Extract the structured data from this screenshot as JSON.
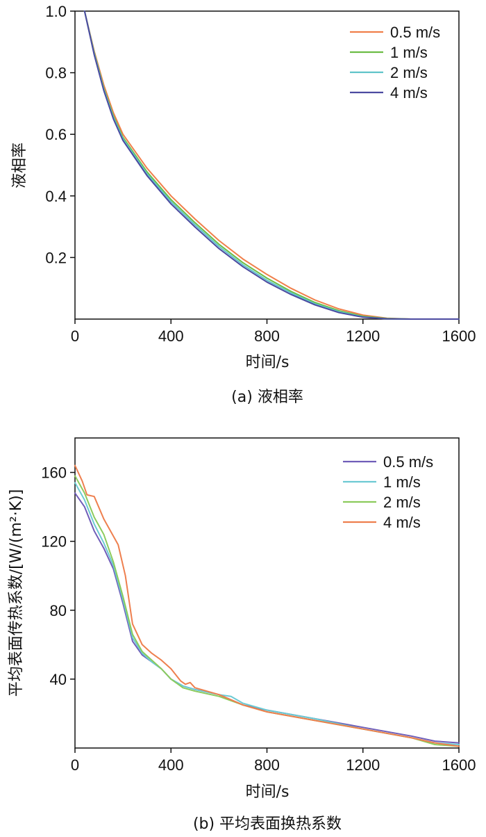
{
  "chart_data": [
    {
      "type": "line",
      "caption": "(a) 液相率",
      "xlabel": "时间/s",
      "ylabel": "液相率",
      "xlim": [
        0,
        1600
      ],
      "ylim": [
        0,
        1.0
      ],
      "xticks": [
        "0",
        "400",
        "800",
        "1200",
        "1600"
      ],
      "yticks": [
        "0.2",
        "0.4",
        "0.6",
        "0.8",
        "1.0"
      ],
      "legend_position": "top-right",
      "series": [
        {
          "name": "0.5 m/s",
          "color": "#f07f4a",
          "points": [
            [
              40,
              1.0
            ],
            [
              80,
              0.87
            ],
            [
              120,
              0.76
            ],
            [
              160,
              0.67
            ],
            [
              200,
              0.6
            ],
            [
              300,
              0.49
            ],
            [
              400,
              0.4
            ],
            [
              500,
              0.325
            ],
            [
              600,
              0.255
            ],
            [
              700,
              0.195
            ],
            [
              800,
              0.145
            ],
            [
              900,
              0.1
            ],
            [
              1000,
              0.062
            ],
            [
              1100,
              0.033
            ],
            [
              1200,
              0.013
            ],
            [
              1300,
              0.003
            ],
            [
              1400,
              0.0
            ],
            [
              1600,
              0.0
            ]
          ]
        },
        {
          "name": "1 m/s",
          "color": "#6cbd45",
          "points": [
            [
              40,
              1.0
            ],
            [
              80,
              0.865
            ],
            [
              120,
              0.75
            ],
            [
              160,
              0.66
            ],
            [
              200,
              0.59
            ],
            [
              300,
              0.478
            ],
            [
              400,
              0.388
            ],
            [
              500,
              0.313
            ],
            [
              600,
              0.243
            ],
            [
              700,
              0.183
            ],
            [
              800,
              0.133
            ],
            [
              900,
              0.09
            ],
            [
              1000,
              0.054
            ],
            [
              1100,
              0.027
            ],
            [
              1200,
              0.009
            ],
            [
              1300,
              0.002
            ],
            [
              1400,
              0.0
            ],
            [
              1600,
              0.0
            ]
          ]
        },
        {
          "name": "2 m/s",
          "color": "#5fc4c9",
          "points": [
            [
              40,
              1.0
            ],
            [
              80,
              0.862
            ],
            [
              120,
              0.746
            ],
            [
              160,
              0.655
            ],
            [
              200,
              0.585
            ],
            [
              300,
              0.472
            ],
            [
              400,
              0.381
            ],
            [
              500,
              0.306
            ],
            [
              600,
              0.236
            ],
            [
              700,
              0.176
            ],
            [
              800,
              0.126
            ],
            [
              900,
              0.085
            ],
            [
              1000,
              0.05
            ],
            [
              1100,
              0.024
            ],
            [
              1200,
              0.007
            ],
            [
              1300,
              0.001
            ],
            [
              1400,
              0.0
            ],
            [
              1600,
              0.0
            ]
          ]
        },
        {
          "name": "4 m/s",
          "color": "#4b4aa0",
          "points": [
            [
              40,
              1.0
            ],
            [
              80,
              0.858
            ],
            [
              120,
              0.742
            ],
            [
              160,
              0.65
            ],
            [
              200,
              0.58
            ],
            [
              300,
              0.466
            ],
            [
              400,
              0.374
            ],
            [
              500,
              0.299
            ],
            [
              600,
              0.229
            ],
            [
              700,
              0.17
            ],
            [
              800,
              0.12
            ],
            [
              900,
              0.08
            ],
            [
              1000,
              0.046
            ],
            [
              1100,
              0.021
            ],
            [
              1200,
              0.006
            ],
            [
              1300,
              0.001
            ],
            [
              1400,
              0.0
            ],
            [
              1600,
              0.0
            ]
          ]
        }
      ]
    },
    {
      "type": "line",
      "caption": "(b) 平均表面换热系数",
      "xlabel": "时间/s",
      "ylabel": "平均表面传热系数/[W/(m²·K)]",
      "xlim": [
        0,
        1600
      ],
      "ylim": [
        0,
        180
      ],
      "xticks": [
        "0",
        "400",
        "800",
        "1200",
        "1600"
      ],
      "yticks": [
        "40",
        "80",
        "120",
        "160"
      ],
      "legend_position": "top-right",
      "series": [
        {
          "name": "0.5 m/s",
          "color": "#6f5db8",
          "points": [
            [
              0,
              148
            ],
            [
              40,
              140
            ],
            [
              80,
              126
            ],
            [
              120,
              116
            ],
            [
              160,
              104
            ],
            [
              200,
              84
            ],
            [
              240,
              62
            ],
            [
              280,
              54
            ],
            [
              320,
              50
            ],
            [
              360,
              46
            ],
            [
              400,
              40
            ],
            [
              450,
              36
            ],
            [
              500,
              34
            ],
            [
              600,
              31
            ],
            [
              700,
              25
            ],
            [
              800,
              22
            ],
            [
              1000,
              17
            ],
            [
              1200,
              12
            ],
            [
              1400,
              7
            ],
            [
              1500,
              4
            ],
            [
              1600,
              3
            ]
          ]
        },
        {
          "name": "1 m/s",
          "color": "#6ccad3",
          "points": [
            [
              0,
              154
            ],
            [
              40,
              144
            ],
            [
              80,
              130
            ],
            [
              120,
              119
            ],
            [
              160,
              106
            ],
            [
              200,
              86
            ],
            [
              240,
              64
            ],
            [
              280,
              55
            ],
            [
              320,
              50
            ],
            [
              360,
              46
            ],
            [
              400,
              40
            ],
            [
              450,
              36
            ],
            [
              500,
              34
            ],
            [
              600,
              31
            ],
            [
              650,
              30
            ],
            [
              700,
              26
            ],
            [
              800,
              22
            ],
            [
              1000,
              17
            ],
            [
              1200,
              11
            ],
            [
              1400,
              6
            ],
            [
              1500,
              3
            ],
            [
              1600,
              2
            ]
          ]
        },
        {
          "name": "2 m/s",
          "color": "#8ccb5c",
          "points": [
            [
              0,
              158
            ],
            [
              40,
              148
            ],
            [
              80,
              134
            ],
            [
              120,
              124
            ],
            [
              160,
              108
            ],
            [
              200,
              88
            ],
            [
              240,
              66
            ],
            [
              280,
              56
            ],
            [
              320,
              51
            ],
            [
              360,
              46
            ],
            [
              400,
              40
            ],
            [
              450,
              35
            ],
            [
              500,
              33
            ],
            [
              600,
              30
            ],
            [
              700,
              25
            ],
            [
              800,
              21
            ],
            [
              1000,
              16
            ],
            [
              1200,
              11
            ],
            [
              1400,
              6
            ],
            [
              1500,
              2
            ],
            [
              1600,
              1
            ]
          ]
        },
        {
          "name": "4 m/s",
          "color": "#ee7f4e",
          "points": [
            [
              0,
              164
            ],
            [
              30,
              155
            ],
            [
              50,
              147
            ],
            [
              80,
              146
            ],
            [
              120,
              133
            ],
            [
              180,
              118
            ],
            [
              210,
              100
            ],
            [
              240,
              72
            ],
            [
              280,
              60
            ],
            [
              320,
              55
            ],
            [
              360,
              51
            ],
            [
              400,
              46
            ],
            [
              440,
              39
            ],
            [
              460,
              37
            ],
            [
              480,
              38
            ],
            [
              500,
              35
            ],
            [
              600,
              31
            ],
            [
              700,
              25
            ],
            [
              800,
              21
            ],
            [
              1000,
              16
            ],
            [
              1200,
              11
            ],
            [
              1400,
              6
            ],
            [
              1500,
              3
            ],
            [
              1600,
              1
            ]
          ]
        }
      ]
    }
  ]
}
